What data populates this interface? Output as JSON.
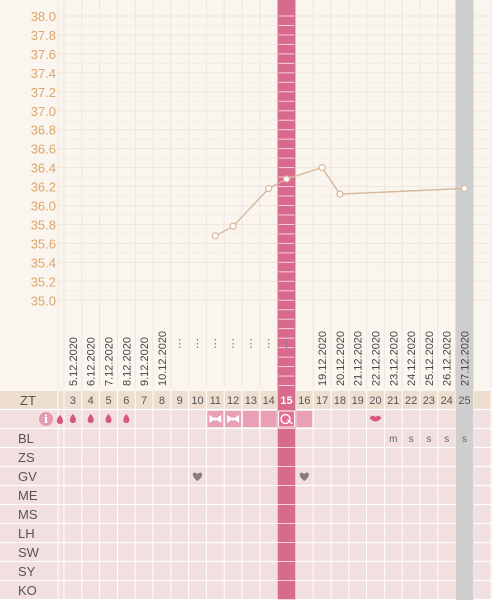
{
  "colors": {
    "background": "#fbf5ef",
    "grid": "#efe6dc",
    "axis_text": "#dca56a",
    "temp_line": "#d8b89b",
    "highlight_day": "#d86a8d",
    "gray_day": "#cfcfcf",
    "table_bg": "#f2dfdf",
    "cd_header_bg": "#eeded0",
    "symbol_pink": "#d7577b",
    "heart": "#8a7c7c"
  },
  "chart_data": {
    "type": "line",
    "title": "",
    "xlabel": "",
    "ylabel": "",
    "ylim": [
      35.0,
      38.0
    ],
    "y_ticks": [
      "38.0",
      "37.8",
      "37.6",
      "37.4",
      "37.2",
      "37.0",
      "36.8",
      "36.6",
      "36.4",
      "36.2",
      "36.0",
      "35.8",
      "35.6",
      "35.4",
      "35.2",
      "35.0"
    ],
    "grid": true,
    "cycle_days": [
      3,
      4,
      5,
      6,
      7,
      8,
      9,
      10,
      11,
      12,
      13,
      14,
      15,
      16,
      17,
      18,
      19,
      20,
      21,
      22,
      23,
      24,
      25
    ],
    "highlight_day": 15,
    "gray_day": 25,
    "date_labels": [
      {
        "day": 3,
        "text": "5.12.2020"
      },
      {
        "day": 4,
        "text": "6.12.2020"
      },
      {
        "day": 5,
        "text": "7.12.2020"
      },
      {
        "day": 6,
        "text": "8.12.2020"
      },
      {
        "day": 7,
        "text": "9.12.2020"
      },
      {
        "day": 8,
        "text": "10.12.2020"
      },
      {
        "day": 17,
        "text": "19.12.2020"
      },
      {
        "day": 18,
        "text": "20.12.2020"
      },
      {
        "day": 19,
        "text": "21.12.2020"
      },
      {
        "day": 20,
        "text": "22.12.2020"
      },
      {
        "day": 21,
        "text": "23.12.2020"
      },
      {
        "day": 22,
        "text": "24.12.2020"
      },
      {
        "day": 23,
        "text": "25.12.2020"
      },
      {
        "day": 24,
        "text": "26.12.2020"
      },
      {
        "day": 25,
        "text": "27.12.2020"
      }
    ],
    "dot_columns": [
      9,
      10,
      11,
      12,
      13,
      14,
      15
    ],
    "dots_text": "⋮",
    "series": [
      {
        "points": [
          {
            "day": 11,
            "temp": 35.68
          },
          {
            "day": 12,
            "temp": 35.78
          },
          {
            "day": 14,
            "temp": 36.18
          },
          {
            "day": 15,
            "temp": 36.28
          },
          {
            "day": 17,
            "temp": 36.4
          },
          {
            "day": 18,
            "temp": 36.12
          },
          {
            "day": 25,
            "temp": 36.18
          }
        ]
      }
    ]
  },
  "table": {
    "header_label": "ZT",
    "info_glyph": "i",
    "rows": [
      "BL",
      "ZS",
      "GV",
      "ME",
      "MS",
      "LH",
      "SW",
      "SY",
      "KO"
    ],
    "bleeding_days": [
      3,
      4,
      5,
      6
    ],
    "bleeding_icon": "drop-icon",
    "bow_days": [
      11,
      12
    ],
    "bow_icon": "bow-icon",
    "filled_days": [
      13,
      14,
      16
    ],
    "ovulation_day": 15,
    "ovulation_icon": "egg-icon",
    "lips_day": 20,
    "lips_icon": "lips-icon",
    "bl_marks": [
      {
        "day": 21,
        "text": "m"
      },
      {
        "day": 22,
        "text": "s"
      },
      {
        "day": 23,
        "text": "s"
      },
      {
        "day": 24,
        "text": "s"
      },
      {
        "day": 25,
        "text": "s"
      }
    ],
    "hearts": [
      10,
      16
    ],
    "heart_icon": "heart-icon"
  }
}
